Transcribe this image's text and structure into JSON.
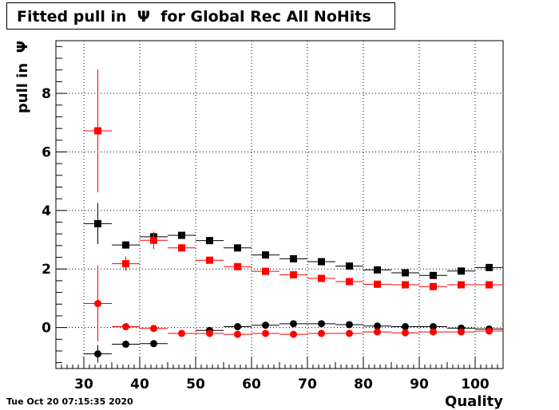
{
  "title": "Fitted pull in  Ψ  for Global Rec All NoHits",
  "timestamp": "Tue Oct 20 07:15:35 2020",
  "chart_data": {
    "type": "scatter",
    "xlabel": "Quality",
    "ylabel": "pull in  Ψ",
    "xlim": [
      25,
      105
    ],
    "ylim": [
      -1.4,
      9.8
    ],
    "x_ticks": [
      30,
      40,
      50,
      60,
      70,
      80,
      90,
      100
    ],
    "y_ticks": [
      0,
      2,
      4,
      6,
      8
    ],
    "grid": true,
    "bin_half_width": 2.5,
    "series": [
      {
        "marker": "square",
        "color": "#000000",
        "points": [
          {
            "x": 32.5,
            "y": 3.55,
            "err": 0.7
          },
          {
            "x": 37.5,
            "y": 2.82,
            "err": 0.12
          },
          {
            "x": 42.5,
            "y": 3.1,
            "err": 0.1
          },
          {
            "x": 47.5,
            "y": 3.15,
            "err": 0.08
          },
          {
            "x": 52.5,
            "y": 2.97,
            "err": 0.06
          },
          {
            "x": 57.5,
            "y": 2.72,
            "err": 0.05
          },
          {
            "x": 62.5,
            "y": 2.48,
            "err": 0.05
          },
          {
            "x": 67.5,
            "y": 2.35,
            "err": 0.05
          },
          {
            "x": 72.5,
            "y": 2.25,
            "err": 0.05
          },
          {
            "x": 77.5,
            "y": 2.1,
            "err": 0.05
          },
          {
            "x": 82.5,
            "y": 1.97,
            "err": 0.05
          },
          {
            "x": 87.5,
            "y": 1.87,
            "err": 0.05
          },
          {
            "x": 92.5,
            "y": 1.78,
            "err": 0.05
          },
          {
            "x": 97.5,
            "y": 1.93,
            "err": 0.05
          },
          {
            "x": 102.5,
            "y": 2.05,
            "err": 0.05
          }
        ]
      },
      {
        "marker": "square",
        "color": "#ff0000",
        "points": [
          {
            "x": 32.5,
            "y": 6.72,
            "err": 2.1
          },
          {
            "x": 37.5,
            "y": 2.18,
            "err": 0.25
          },
          {
            "x": 42.5,
            "y": 2.98,
            "err": 0.3
          },
          {
            "x": 47.5,
            "y": 2.72,
            "err": 0.1
          },
          {
            "x": 52.5,
            "y": 2.3,
            "err": 0.07
          },
          {
            "x": 57.5,
            "y": 2.08,
            "err": 0.06
          },
          {
            "x": 62.5,
            "y": 1.92,
            "err": 0.05
          },
          {
            "x": 67.5,
            "y": 1.8,
            "err": 0.05
          },
          {
            "x": 72.5,
            "y": 1.68,
            "err": 0.05
          },
          {
            "x": 77.5,
            "y": 1.57,
            "err": 0.05
          },
          {
            "x": 82.5,
            "y": 1.48,
            "err": 0.05
          },
          {
            "x": 87.5,
            "y": 1.46,
            "err": 0.05
          },
          {
            "x": 92.5,
            "y": 1.4,
            "err": 0.05
          },
          {
            "x": 97.5,
            "y": 1.46,
            "err": 0.05
          },
          {
            "x": 102.5,
            "y": 1.46,
            "err": 0.05
          }
        ]
      },
      {
        "marker": "circle",
        "color": "#000000",
        "points": [
          {
            "x": 32.5,
            "y": -0.9,
            "err": 0.3
          },
          {
            "x": 37.5,
            "y": -0.57,
            "err": 0.08
          },
          {
            "x": 42.5,
            "y": -0.55,
            "err": 0.06
          },
          {
            "x": 52.5,
            "y": -0.1,
            "err": 0.05
          },
          {
            "x": 57.5,
            "y": 0.03,
            "err": 0.05
          },
          {
            "x": 62.5,
            "y": 0.08,
            "err": 0.05
          },
          {
            "x": 67.5,
            "y": 0.13,
            "err": 0.05
          },
          {
            "x": 72.5,
            "y": 0.13,
            "err": 0.05
          },
          {
            "x": 77.5,
            "y": 0.1,
            "err": 0.05
          },
          {
            "x": 82.5,
            "y": 0.05,
            "err": 0.05
          },
          {
            "x": 87.5,
            "y": 0.03,
            "err": 0.05
          },
          {
            "x": 92.5,
            "y": 0.03,
            "err": 0.05
          },
          {
            "x": 97.5,
            "y": -0.02,
            "err": 0.05
          },
          {
            "x": 102.5,
            "y": -0.05,
            "err": 0.05
          }
        ]
      },
      {
        "marker": "circle",
        "color": "#ff0000",
        "points": [
          {
            "x": 32.5,
            "y": 0.82,
            "err": 1.3
          },
          {
            "x": 37.5,
            "y": 0.03,
            "err": 0.12
          },
          {
            "x": 42.5,
            "y": -0.03,
            "err": 0.08
          },
          {
            "x": 47.5,
            "y": -0.2,
            "err": 0.05
          },
          {
            "x": 52.5,
            "y": -0.2,
            "err": 0.05
          },
          {
            "x": 57.5,
            "y": -0.23,
            "err": 0.05
          },
          {
            "x": 62.5,
            "y": -0.2,
            "err": 0.05
          },
          {
            "x": 67.5,
            "y": -0.23,
            "err": 0.05
          },
          {
            "x": 72.5,
            "y": -0.2,
            "err": 0.05
          },
          {
            "x": 77.5,
            "y": -0.2,
            "err": 0.05
          },
          {
            "x": 82.5,
            "y": -0.15,
            "err": 0.05
          },
          {
            "x": 87.5,
            "y": -0.18,
            "err": 0.05
          },
          {
            "x": 92.5,
            "y": -0.15,
            "err": 0.05
          },
          {
            "x": 97.5,
            "y": -0.15,
            "err": 0.05
          },
          {
            "x": 102.5,
            "y": -0.12,
            "err": 0.05
          }
        ]
      }
    ]
  }
}
